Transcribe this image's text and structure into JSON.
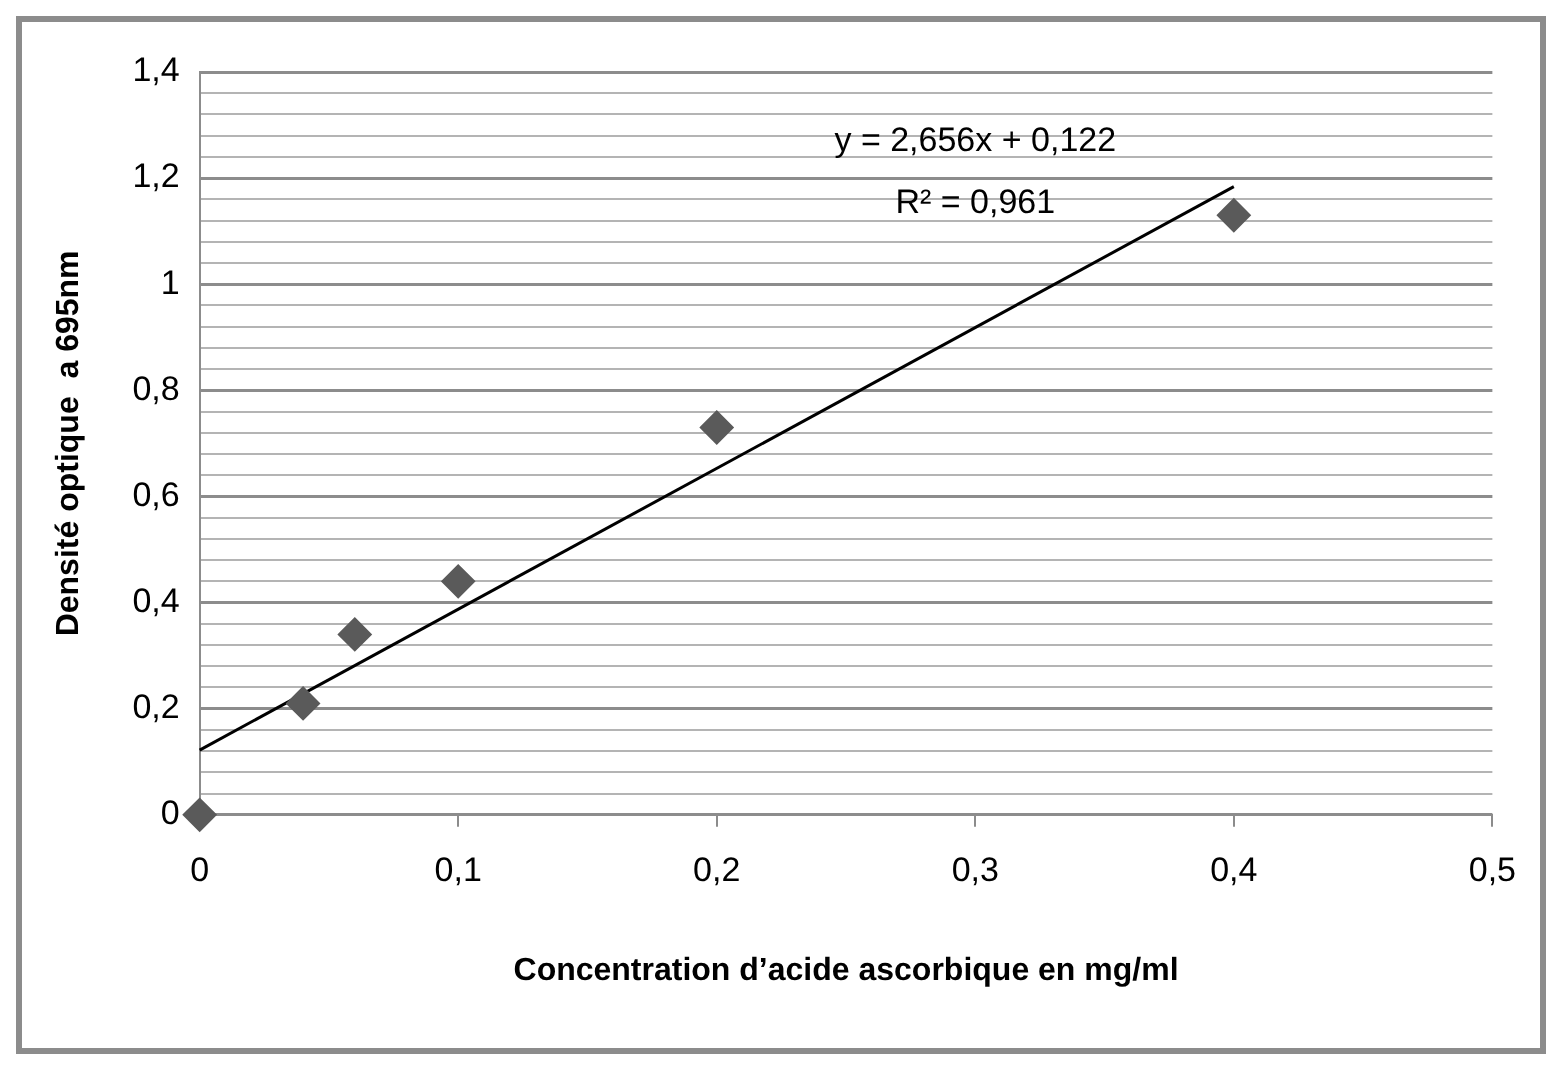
{
  "chart_data": {
    "type": "scatter",
    "xlabel": "Concentration d’acide ascorbique en mg/ml",
    "ylabel": "Densité optique  a 695nm",
    "x": [
      0,
      0.04,
      0.06,
      0.1,
      0.2,
      0.4
    ],
    "series": [
      {
        "color": "#5a5a5a",
        "marker": "diamond",
        "values": [
          0,
          0.21,
          0.34,
          0.44,
          0.73,
          1.13
        ]
      },
      {
        "type": "line",
        "color": "#000000",
        "marker": "none",
        "x": [
          0,
          0.4
        ],
        "values": [
          0.122,
          1.184
        ]
      }
    ],
    "xlim": [
      0,
      0.5
    ],
    "xticks": [
      0,
      {
        "value": 0.1,
        "label": "0,1"
      },
      {
        "value": 0.2,
        "label": "0,2"
      },
      {
        "value": 0.3,
        "label": "0,3"
      },
      {
        "value": 0.4,
        "label": "0,4"
      },
      {
        "value": 0.5,
        "label": "0,5"
      }
    ],
    "ylim": [
      0,
      1.4
    ],
    "yticks": [
      0,
      {
        "value": 0.04,
        "label": null
      },
      {
        "value": 0.08,
        "label": null
      },
      {
        "value": 0.12,
        "label": null
      },
      {
        "value": 0.16,
        "label": null
      },
      {
        "value": 0.2,
        "label": "0,2"
      },
      {
        "value": 0.24,
        "label": null
      },
      {
        "value": 0.28,
        "label": null
      },
      {
        "value": 0.32,
        "label": null
      },
      {
        "value": 0.36,
        "label": null
      },
      {
        "value": 0.4,
        "label": "0,4"
      },
      {
        "value": 0.44,
        "label": null
      },
      {
        "value": 0.48,
        "label": null
      },
      {
        "value": 0.52,
        "label": null
      },
      {
        "value": 0.56,
        "label": null
      },
      {
        "value": 0.6,
        "label": "0,6"
      },
      {
        "value": 0.64,
        "label": null
      },
      {
        "value": 0.68,
        "label": null
      },
      {
        "value": 0.72,
        "label": null
      },
      {
        "value": 0.76,
        "label": null
      },
      {
        "value": 0.8,
        "label": "0,8"
      },
      {
        "value": 0.84,
        "label": null
      },
      {
        "value": 0.88,
        "label": null
      },
      {
        "value": 0.92,
        "label": null
      },
      {
        "value": 0.96,
        "label": null
      },
      {
        "value": 1,
        "label": "1"
      },
      {
        "value": 1.04,
        "label": null
      },
      {
        "value": 1.08,
        "label": null
      },
      {
        "value": 1.12,
        "label": null
      },
      {
        "value": 1.16,
        "label": null
      },
      {
        "value": 1.2,
        "label": "1,2"
      },
      {
        "value": 1.24,
        "label": null
      },
      {
        "value": 1.28,
        "label": null
      },
      {
        "value": 1.32,
        "label": null
      },
      {
        "value": 1.36,
        "label": null
      },
      {
        "value": 1.4,
        "label": "1,4"
      }
    ],
    "grid": "y",
    "legend": false,
    "annotations": [
      "y = 2,656x + 0,122",
      "R² = 0,961"
    ]
  }
}
